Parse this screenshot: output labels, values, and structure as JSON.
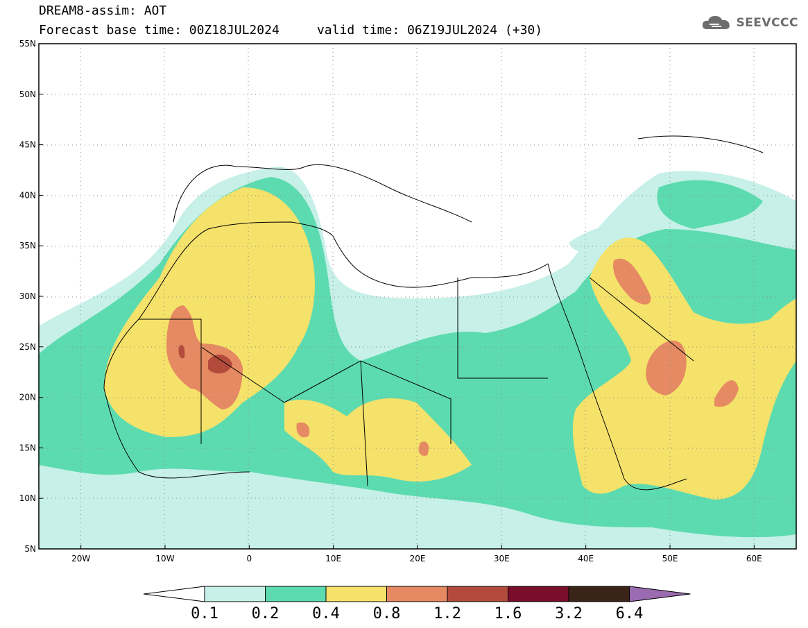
{
  "header": {
    "model_line": "DREAM8-assim: AOT",
    "time_line": "Forecast base time: 00Z18JUL2024     valid time: 06Z19JUL2024 (+30)"
  },
  "logo": {
    "icon": "cloud-icon",
    "text": "SEEVCCC"
  },
  "axes": {
    "lat_labels": [
      "55N",
      "50N",
      "45N",
      "40N",
      "35N",
      "30N",
      "25N",
      "20N",
      "15N",
      "10N",
      "5N"
    ],
    "lat_values": [
      55,
      50,
      45,
      40,
      35,
      30,
      25,
      20,
      15,
      10,
      5
    ],
    "lon_labels": [
      "20W",
      "10W",
      "0",
      "10E",
      "20E",
      "30E",
      "40E",
      "50E",
      "60E"
    ],
    "lon_values": [
      -20,
      -10,
      0,
      10,
      20,
      30,
      40,
      50,
      60
    ],
    "lat_range": [
      5,
      55
    ],
    "lon_range": [
      -25,
      65
    ],
    "grid": "dotted"
  },
  "colorbar": {
    "levels": [
      "0.1",
      "0.2",
      "0.4",
      "0.8",
      "1.2",
      "1.6",
      "3.2",
      "6.4"
    ],
    "colors": [
      "#c6f0e8",
      "#5ddbb0",
      "#f5e26a",
      "#e58a62",
      "#b24b3c",
      "#7a0e2a",
      "#3a2417"
    ],
    "below_color": "#ffffff",
    "above_color": "#9a6bb0"
  },
  "map": {
    "variable": "AOT",
    "colors": {
      "light": "#c6f0e8",
      "green": "#5ddbb0",
      "yellow": "#f5e26a",
      "orange": "#e58a62",
      "brown": "#b24b3c"
    }
  }
}
